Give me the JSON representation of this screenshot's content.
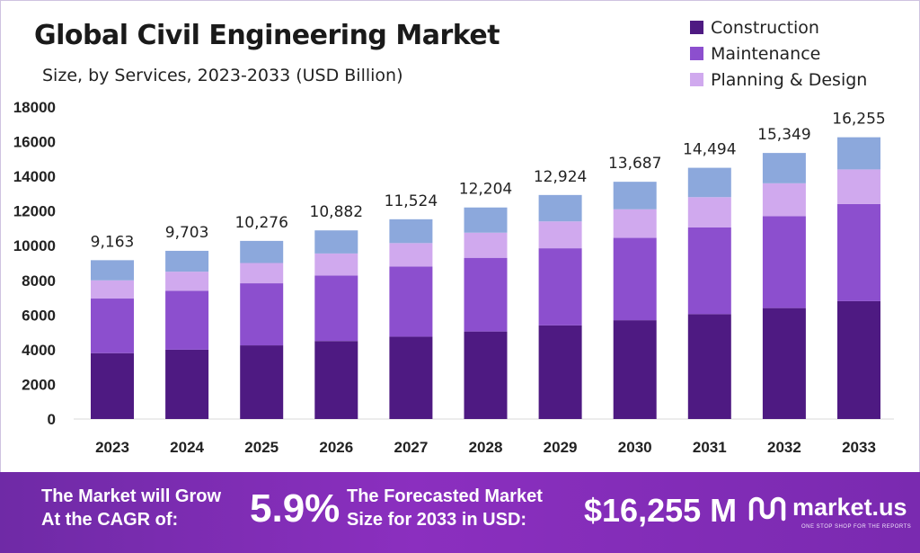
{
  "chart_data": {
    "type": "bar",
    "stacked": true,
    "title": "Global Civil Engineering Market",
    "subtitle": "Size, by Services, 2023-2033 (USD Billion)",
    "categories": [
      "2023",
      "2024",
      "2025",
      "2026",
      "2027",
      "2028",
      "2029",
      "2030",
      "2031",
      "2032",
      "2033"
    ],
    "series": [
      {
        "name": "Construction",
        "color": "#4e1a82",
        "values": [
          3800,
          4000,
          4250,
          4500,
          4750,
          5050,
          5400,
          5700,
          6050,
          6400,
          6800
        ]
      },
      {
        "name": "Maintenance",
        "color": "#8c4fce",
        "values": [
          3150,
          3400,
          3580,
          3780,
          4050,
          4250,
          4450,
          4750,
          5000,
          5300,
          5600
        ]
      },
      {
        "name": "Planning & Design",
        "color": "#d0a9ee",
        "values": [
          1050,
          1100,
          1170,
          1270,
          1350,
          1450,
          1550,
          1650,
          1750,
          1900,
          2000
        ]
      },
      {
        "name": "",
        "color": "#8ca8dc",
        "values": [
          1163,
          1203,
          1276,
          1332,
          1374,
          1454,
          1524,
          1587,
          1694,
          1749,
          1855
        ]
      }
    ],
    "totals": [
      9163,
      9703,
      10276,
      10882,
      11524,
      12204,
      12924,
      13687,
      14494,
      15349,
      16255
    ],
    "total_labels": [
      "9,163",
      "9,703",
      "10,276",
      "10,882",
      "11,524",
      "12,204",
      "12,924",
      "13,687",
      "14,494",
      "15,349",
      "16,255"
    ],
    "y_ticks": [
      0,
      2000,
      4000,
      6000,
      8000,
      10000,
      12000,
      14000,
      16000,
      18000
    ],
    "ylim": [
      0,
      18000
    ],
    "grid": false,
    "legend": "top-right"
  },
  "banner": {
    "grow_line1": "The Market will Grow",
    "grow_line2": "At the CAGR of:",
    "cagr": "5.9%",
    "forecast_line1": "The Forecasted Market",
    "forecast_line2": "Size for 2033 in USD:",
    "value": "$16,255 M",
    "brand": "market.us",
    "tagline": "ONE STOP SHOP FOR THE REPORTS"
  }
}
